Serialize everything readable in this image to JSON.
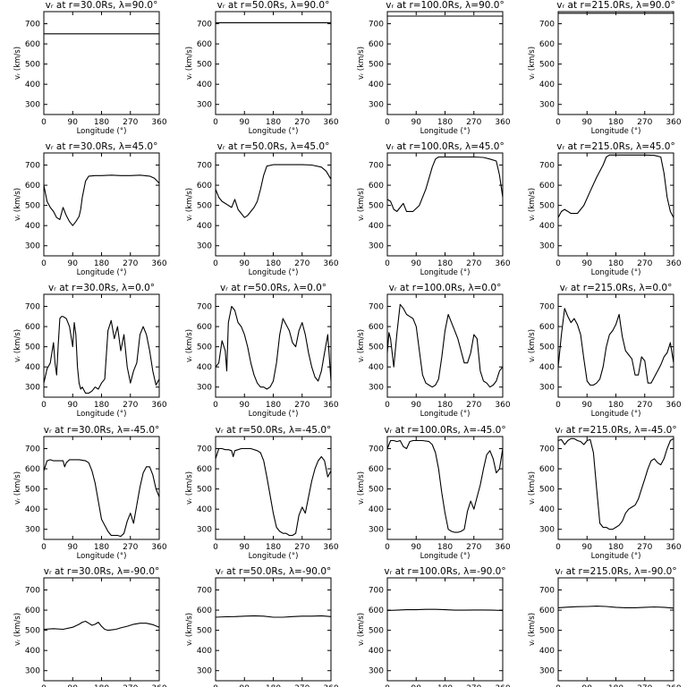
{
  "figure": {
    "xlabel": "Longitude (°)",
    "ylabel": "vᵣ (km/s)",
    "xlim": [
      0,
      360
    ],
    "ylim": [
      250,
      760
    ],
    "xticks": [
      0,
      90,
      180,
      270,
      360
    ],
    "yticks": [
      300,
      400,
      500,
      600,
      700
    ]
  },
  "chart_data": [
    {
      "type": "line",
      "title": "vᵣ at r=30.0Rs, λ=90.0°",
      "row": 0,
      "col": 0,
      "x": [
        0,
        360
      ],
      "y": [
        650,
        650
      ]
    },
    {
      "type": "line",
      "title": "vᵣ at r=50.0Rs, λ=90.0°",
      "row": 0,
      "col": 1,
      "x": [
        0,
        360
      ],
      "y": [
        705,
        705
      ]
    },
    {
      "type": "line",
      "title": "vᵣ at r=100.0Rs, λ=90.0°",
      "row": 0,
      "col": 2,
      "x": [
        0,
        360
      ],
      "y": [
        738,
        738
      ]
    },
    {
      "type": "line",
      "title": "vᵣ at r=215.0Rs, λ=90.0°",
      "row": 0,
      "col": 3,
      "x": [
        0,
        360
      ],
      "y": [
        752,
        752
      ]
    },
    {
      "type": "line",
      "title": "vᵣ at r=30.0Rs, λ=45.0°",
      "row": 1,
      "col": 0,
      "x": [
        0,
        10,
        20,
        30,
        40,
        50,
        60,
        70,
        80,
        90,
        100,
        110,
        115,
        120,
        130,
        140,
        160,
        180,
        210,
        240,
        270,
        300,
        330,
        345,
        360
      ],
      "y": [
        600,
        520,
        490,
        470,
        440,
        430,
        490,
        450,
        420,
        400,
        420,
        445,
        480,
        540,
        620,
        645,
        648,
        648,
        650,
        648,
        648,
        650,
        645,
        635,
        610
      ]
    },
    {
      "type": "line",
      "title": "vᵣ at r=50.0Rs, λ=45.0°",
      "row": 1,
      "col": 1,
      "x": [
        0,
        10,
        20,
        30,
        40,
        50,
        60,
        70,
        80,
        90,
        100,
        110,
        120,
        130,
        140,
        150,
        160,
        180,
        210,
        240,
        270,
        300,
        330,
        345,
        360
      ],
      "y": [
        580,
        540,
        520,
        510,
        500,
        490,
        530,
        480,
        460,
        440,
        450,
        470,
        490,
        520,
        580,
        650,
        695,
        702,
        702,
        702,
        702,
        700,
        690,
        670,
        630
      ]
    },
    {
      "type": "line",
      "title": "vᵣ at r=100.0Rs, λ=45.0°",
      "row": 1,
      "col": 2,
      "x": [
        0,
        10,
        20,
        30,
        40,
        50,
        60,
        80,
        100,
        120,
        140,
        150,
        160,
        180,
        210,
        240,
        270,
        300,
        320,
        340,
        350,
        360
      ],
      "y": [
        530,
        520,
        480,
        470,
        490,
        510,
        470,
        470,
        500,
        580,
        690,
        730,
        740,
        740,
        740,
        740,
        740,
        738,
        730,
        720,
        650,
        540
      ]
    },
    {
      "type": "line",
      "title": "vᵣ at r=215.0Rs, λ=45.0°",
      "row": 1,
      "col": 3,
      "x": [
        0,
        10,
        20,
        30,
        40,
        60,
        80,
        100,
        120,
        140,
        150,
        160,
        180,
        210,
        240,
        270,
        300,
        320,
        330,
        340,
        350,
        360
      ],
      "y": [
        440,
        470,
        480,
        470,
        460,
        460,
        500,
        570,
        640,
        700,
        740,
        750,
        750,
        750,
        750,
        750,
        748,
        740,
        660,
        540,
        470,
        440
      ]
    },
    {
      "type": "line",
      "title": "vᵣ at r=30.0Rs, λ=0.0°",
      "row": 2,
      "col": 0,
      "x": [
        0,
        10,
        20,
        30,
        35,
        40,
        45,
        50,
        55,
        60,
        70,
        80,
        90,
        95,
        100,
        105,
        110,
        115,
        120,
        130,
        140,
        150,
        160,
        170,
        180,
        190,
        200,
        210,
        220,
        230,
        240,
        250,
        260,
        270,
        280,
        290,
        300,
        310,
        320,
        330,
        340,
        350,
        360
      ],
      "y": [
        320,
        390,
        420,
        520,
        420,
        360,
        510,
        640,
        650,
        650,
        640,
        600,
        500,
        620,
        560,
        400,
        320,
        290,
        300,
        270,
        270,
        280,
        300,
        290,
        320,
        340,
        580,
        630,
        540,
        600,
        480,
        560,
        400,
        320,
        380,
        420,
        560,
        600,
        560,
        480,
        380,
        310,
        340
      ]
    },
    {
      "type": "line",
      "title": "vᵣ at r=50.0Rs, λ=0.0°",
      "row": 2,
      "col": 1,
      "x": [
        0,
        10,
        20,
        30,
        35,
        40,
        50,
        60,
        70,
        80,
        90,
        100,
        110,
        120,
        130,
        140,
        150,
        160,
        170,
        180,
        190,
        200,
        210,
        220,
        230,
        240,
        250,
        260,
        270,
        280,
        290,
        300,
        310,
        320,
        330,
        340,
        350,
        360
      ],
      "y": [
        400,
        420,
        530,
        480,
        380,
        620,
        700,
        680,
        620,
        600,
        560,
        500,
        420,
        360,
        320,
        300,
        300,
        290,
        300,
        330,
        420,
        560,
        640,
        610,
        580,
        520,
        500,
        580,
        620,
        560,
        470,
        400,
        350,
        330,
        380,
        470,
        560,
        330
      ]
    },
    {
      "type": "line",
      "title": "vᵣ at r=100.0Rs, λ=0.0°",
      "row": 2,
      "col": 2,
      "x": [
        0,
        5,
        10,
        20,
        30,
        40,
        50,
        60,
        70,
        80,
        90,
        100,
        110,
        120,
        130,
        140,
        150,
        160,
        170,
        180,
        190,
        200,
        210,
        220,
        230,
        240,
        250,
        260,
        270,
        280,
        290,
        300,
        310,
        320,
        330,
        340,
        350,
        360
      ],
      "y": [
        470,
        570,
        540,
        400,
        570,
        710,
        690,
        660,
        650,
        640,
        600,
        480,
        360,
        320,
        310,
        300,
        310,
        340,
        450,
        580,
        660,
        620,
        580,
        540,
        480,
        420,
        420,
        470,
        560,
        540,
        380,
        330,
        320,
        300,
        310,
        330,
        380,
        400
      ]
    },
    {
      "type": "line",
      "title": "vᵣ at r=215.0Rs, λ=0.0°",
      "row": 2,
      "col": 3,
      "x": [
        0,
        10,
        20,
        30,
        40,
        50,
        60,
        70,
        80,
        90,
        100,
        110,
        120,
        130,
        140,
        150,
        160,
        170,
        180,
        190,
        200,
        210,
        220,
        230,
        240,
        250,
        260,
        270,
        280,
        290,
        300,
        310,
        320,
        330,
        340,
        350,
        355,
        360
      ],
      "y": [
        400,
        560,
        690,
        650,
        620,
        640,
        610,
        560,
        440,
        330,
        310,
        310,
        320,
        340,
        400,
        500,
        560,
        580,
        610,
        660,
        550,
        480,
        460,
        440,
        360,
        360,
        450,
        430,
        320,
        320,
        350,
        380,
        410,
        450,
        470,
        520,
        470,
        420
      ]
    },
    {
      "type": "line",
      "title": "vᵣ at r=30.0Rs, λ=-45.0°",
      "row": 3,
      "col": 0,
      "x": [
        0,
        10,
        20,
        30,
        40,
        50,
        60,
        65,
        70,
        80,
        90,
        110,
        130,
        140,
        150,
        160,
        170,
        180,
        190,
        200,
        210,
        220,
        230,
        240,
        250,
        260,
        270,
        280,
        290,
        300,
        310,
        320,
        330,
        340,
        350,
        360
      ],
      "y": [
        590,
        640,
        645,
        640,
        640,
        640,
        640,
        610,
        630,
        645,
        645,
        645,
        640,
        630,
        590,
        530,
        440,
        350,
        320,
        290,
        270,
        270,
        270,
        265,
        280,
        340,
        380,
        330,
        420,
        510,
        580,
        610,
        610,
        570,
        500,
        460
      ]
    },
    {
      "type": "line",
      "title": "vᵣ at r=50.0Rs, λ=-45.0°",
      "row": 3,
      "col": 1,
      "x": [
        0,
        10,
        20,
        30,
        40,
        50,
        55,
        60,
        70,
        80,
        90,
        110,
        130,
        140,
        150,
        160,
        170,
        180,
        190,
        200,
        210,
        220,
        230,
        240,
        250,
        260,
        270,
        280,
        290,
        300,
        310,
        320,
        330,
        340,
        350,
        360
      ],
      "y": [
        650,
        700,
        700,
        695,
        695,
        690,
        660,
        690,
        695,
        700,
        700,
        700,
        690,
        680,
        640,
        560,
        470,
        380,
        310,
        290,
        280,
        280,
        270,
        270,
        280,
        370,
        410,
        380,
        460,
        540,
        600,
        640,
        660,
        640,
        560,
        590
      ]
    },
    {
      "type": "line",
      "title": "vᵣ at r=100.0Rs, λ=-45.0°",
      "row": 3,
      "col": 2,
      "x": [
        0,
        10,
        20,
        30,
        40,
        50,
        60,
        70,
        80,
        90,
        110,
        130,
        140,
        150,
        160,
        170,
        180,
        190,
        200,
        210,
        220,
        230,
        240,
        250,
        260,
        270,
        280,
        290,
        300,
        310,
        320,
        330,
        340,
        350,
        360
      ],
      "y": [
        700,
        740,
        740,
        735,
        740,
        710,
        700,
        735,
        740,
        740,
        740,
        735,
        720,
        680,
        600,
        480,
        380,
        300,
        290,
        285,
        285,
        290,
        300,
        390,
        440,
        400,
        460,
        520,
        600,
        670,
        690,
        650,
        580,
        600,
        700
      ]
    },
    {
      "type": "line",
      "title": "vᵣ at r=215.0Rs, λ=-45.0°",
      "row": 3,
      "col": 3,
      "x": [
        0,
        10,
        20,
        30,
        40,
        50,
        60,
        70,
        80,
        90,
        100,
        110,
        120,
        130,
        140,
        150,
        160,
        170,
        180,
        190,
        200,
        210,
        220,
        230,
        240,
        250,
        260,
        270,
        280,
        290,
        300,
        310,
        320,
        330,
        340,
        350,
        360
      ],
      "y": [
        740,
        745,
        720,
        740,
        750,
        750,
        740,
        735,
        720,
        740,
        745,
        680,
        500,
        330,
        310,
        310,
        300,
        300,
        310,
        320,
        340,
        380,
        400,
        410,
        420,
        450,
        500,
        550,
        600,
        640,
        650,
        630,
        620,
        650,
        700,
        740,
        750
      ]
    },
    {
      "type": "line",
      "title": "vᵣ at r=30.0Rs, λ=-90.0°",
      "row": 4,
      "col": 0,
      "x": [
        0,
        30,
        60,
        90,
        110,
        120,
        130,
        140,
        150,
        160,
        170,
        180,
        190,
        200,
        210,
        225,
        240,
        260,
        280,
        300,
        320,
        340,
        360
      ],
      "y": [
        505,
        508,
        505,
        515,
        530,
        540,
        545,
        535,
        525,
        530,
        540,
        520,
        505,
        500,
        502,
        505,
        512,
        520,
        530,
        535,
        535,
        528,
        515
      ]
    },
    {
      "type": "line",
      "title": "vᵣ at r=50.0Rs, λ=-90.0°",
      "row": 4,
      "col": 1,
      "x": [
        0,
        30,
        60,
        90,
        120,
        150,
        180,
        210,
        240,
        270,
        300,
        330,
        360
      ],
      "y": [
        565,
        567,
        568,
        570,
        572,
        570,
        565,
        565,
        568,
        570,
        570,
        572,
        568
      ]
    },
    {
      "type": "line",
      "title": "vᵣ at r=100.0Rs, λ=-90.0°",
      "row": 4,
      "col": 2,
      "x": [
        0,
        30,
        60,
        90,
        120,
        150,
        180,
        210,
        240,
        270,
        300,
        330,
        360
      ],
      "y": [
        598,
        600,
        602,
        602,
        604,
        604,
        602,
        600,
        600,
        601,
        601,
        600,
        598
      ]
    },
    {
      "type": "line",
      "title": "vᵣ at r=215.0Rs, λ=-90.0°",
      "row": 4,
      "col": 3,
      "x": [
        0,
        30,
        60,
        90,
        120,
        150,
        180,
        210,
        240,
        270,
        300,
        330,
        360
      ],
      "y": [
        612,
        615,
        617,
        618,
        620,
        618,
        614,
        612,
        612,
        614,
        616,
        614,
        610
      ]
    }
  ]
}
